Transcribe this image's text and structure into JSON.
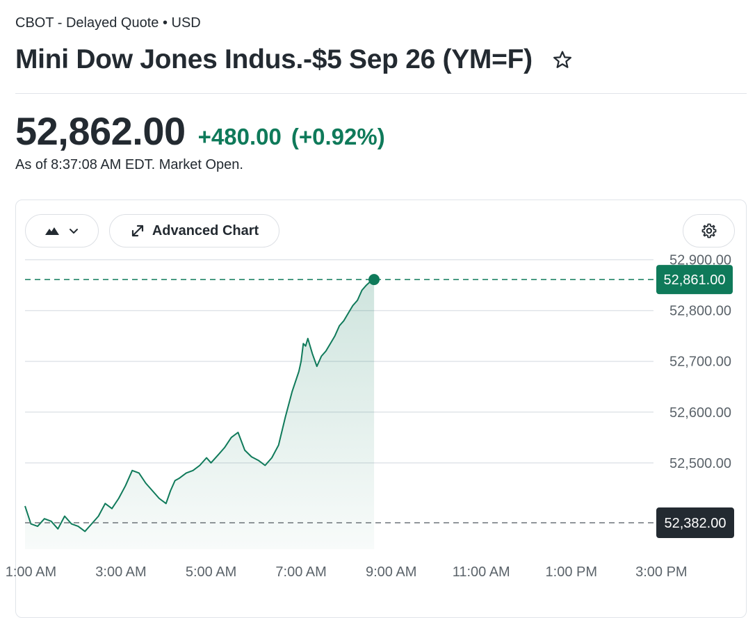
{
  "header": {
    "exchange_line": "CBOT - Delayed Quote • USD",
    "title": "Mini Dow Jones Indus.-$5 Sep 26 (YM=F)",
    "price": "52,862.00",
    "change": "+480.00",
    "change_pct": "(+0.92%)",
    "as_of": "As of 8:37:08 AM EDT. Market Open."
  },
  "toolbar": {
    "chart_type_icon": "mountain-icon",
    "advanced_chart_label": "Advanced Chart",
    "settings_icon": "gear-icon"
  },
  "colors": {
    "up": "#0f7a5a",
    "prev_close_badge": "#232a31",
    "grid": "#e0e4e9"
  },
  "chart_data": {
    "type": "area",
    "y_ticks": [
      52900,
      52800,
      52700,
      52600,
      52500
    ],
    "y_tick_labels": [
      "52,900.00",
      "52,800.00",
      "52,700.00",
      "52,600.00",
      "52,500.00"
    ],
    "ylim": [
      52330,
      52905
    ],
    "x_ticks": [
      "1:00 AM",
      "3:00 AM",
      "5:00 AM",
      "7:00 AM",
      "9:00 AM",
      "11:00 AM",
      "1:00 PM",
      "3:00 PM"
    ],
    "x_tick_hours": [
      1,
      3,
      5,
      7,
      9,
      11,
      13,
      15
    ],
    "xlim_hours": [
      0.87,
      16.6
    ],
    "current": {
      "value": 52861,
      "label": "52,861.00"
    },
    "previous_close": {
      "value": 52382,
      "label": "52,382.00"
    },
    "grid": true,
    "series": [
      {
        "x_hours": [
          0.87,
          1.0,
          1.15,
          1.3,
          1.45,
          1.6,
          1.75,
          1.9,
          2.05,
          2.2,
          2.35,
          2.5,
          2.65,
          2.8,
          2.95,
          3.1,
          3.25,
          3.4,
          3.55,
          3.7,
          3.85,
          4.0,
          4.1,
          4.2,
          4.3,
          4.45,
          4.6,
          4.75,
          4.9,
          5.0,
          5.15,
          5.3,
          5.45,
          5.6,
          5.75,
          5.9,
          6.05,
          6.2,
          6.35,
          6.5,
          6.65,
          6.8,
          6.95,
          7.0,
          7.05,
          7.1,
          7.15,
          7.25,
          7.35,
          7.45,
          7.55,
          7.65,
          7.75,
          7.85,
          7.95,
          8.05,
          8.15,
          8.25,
          8.35,
          8.45,
          8.55,
          8.62
        ],
        "values": [
          52415,
          52380,
          52375,
          52390,
          52385,
          52370,
          52395,
          52380,
          52375,
          52365,
          52380,
          52395,
          52420,
          52410,
          52430,
          52455,
          52485,
          52480,
          52460,
          52445,
          52430,
          52420,
          52445,
          52465,
          52470,
          52480,
          52485,
          52495,
          52510,
          52500,
          52515,
          52530,
          52550,
          52560,
          52525,
          52512,
          52505,
          52495,
          52510,
          52535,
          52590,
          52640,
          52680,
          52700,
          52735,
          52730,
          52745,
          52715,
          52690,
          52710,
          52720,
          52735,
          52750,
          52770,
          52780,
          52795,
          52810,
          52820,
          52840,
          52850,
          52858,
          52861
        ]
      }
    ]
  }
}
